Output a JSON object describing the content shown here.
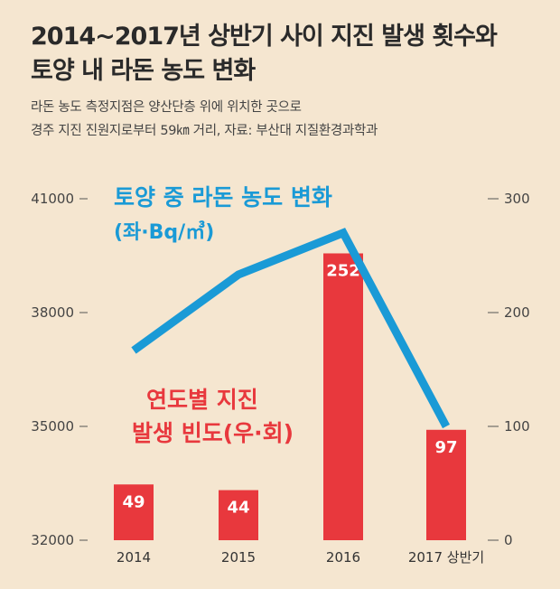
{
  "title_line1": "2014~2017년 상반기 사이 지진 발생 횟수와",
  "title_line2": "토양 내 라돈 농도 변화",
  "subtitle_line1": "라돈 농도 측정지점은 양산단층 위에 위치한 곳으로",
  "subtitle_line2": "경주 지진 진원지로부터 59㎞ 거리, 자료: 부산대 지질환경과학과",
  "colors": {
    "line": "#1a9ad6",
    "bar": "#e8383d",
    "background": "#f5e6d0"
  },
  "chart_data": {
    "type": "bar+line",
    "categories": [
      "2014",
      "2015",
      "2016",
      "2017 상반기"
    ],
    "bar_series": {
      "label_line1": "연도별 지진",
      "label_line2": "발생 빈도(우·회)",
      "axis": "right",
      "values": [
        49,
        44,
        252,
        97
      ]
    },
    "line_series": {
      "label_line1": "토양 중 라돈 농도 변화",
      "label_line2": "(좌·Bq/㎥)",
      "axis": "left",
      "values": [
        37000,
        39000,
        40100,
        35000
      ]
    },
    "left_axis": {
      "min": 32000,
      "max": 41000,
      "ticks": [
        "41000",
        "38000",
        "35000",
        "32000"
      ]
    },
    "right_axis": {
      "min": 0,
      "max": 300,
      "ticks": [
        "300",
        "200",
        "100",
        "0"
      ]
    },
    "grid": false
  }
}
